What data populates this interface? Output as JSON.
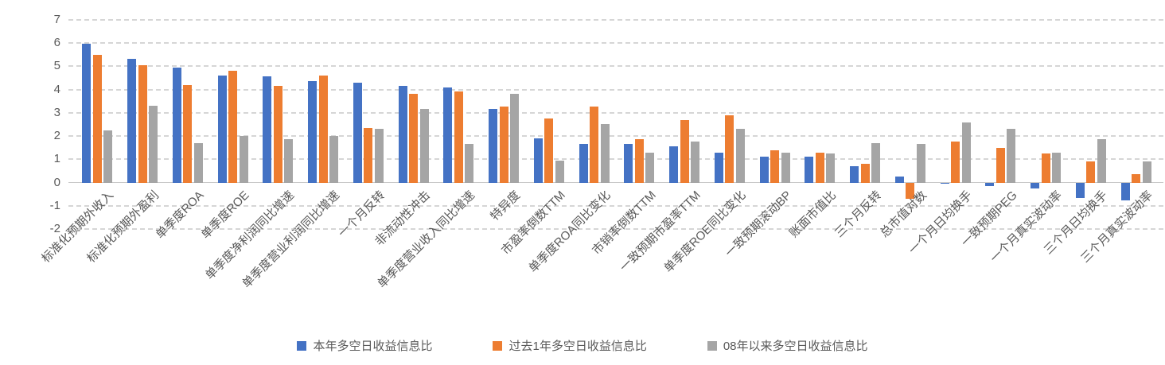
{
  "chart_data": {
    "type": "bar",
    "title": "",
    "xlabel": "",
    "ylabel": "",
    "ylim": [
      -2,
      7
    ],
    "yticks": [
      7,
      6,
      5,
      4,
      3,
      2,
      1,
      0,
      -1,
      -2
    ],
    "grid": "dashed-horizontal",
    "legend_position": "bottom",
    "categories": [
      "标准化预期外收入",
      "标准化预期外盈利",
      "单季度ROA",
      "单季度ROE",
      "单季度净利润同比增速",
      "单季度营业利润同比增速",
      "一个月反转",
      "非流动性冲击",
      "单季度营业收入同比增速",
      "特异度",
      "市盈率倒数TTM",
      "单季度ROA同比变化",
      "市销率倒数TTM",
      "一致预期市盈率TTM",
      "单季度ROE同比变化",
      "一致预期滚动BP",
      "账面市值比",
      "三个月反转",
      "总市值对数",
      "一个月日均换手",
      "一致预期PEG",
      "一个月真实波动率",
      "三个月日均换手",
      "三个月真实波动率"
    ],
    "series": [
      {
        "name": "本年多空日收益信息比",
        "color": "#4472C4",
        "values": [
          5.95,
          5.3,
          4.95,
          4.6,
          4.55,
          4.35,
          4.3,
          4.15,
          4.1,
          3.15,
          1.9,
          1.65,
          1.65,
          1.55,
          1.3,
          1.1,
          1.1,
          0.7,
          0.25,
          -0.05,
          -0.15,
          -0.25,
          -0.65,
          -0.75
        ]
      },
      {
        "name": "过去1年多空日收益信息比",
        "color": "#ED7D31",
        "values": [
          5.5,
          5.05,
          4.2,
          4.8,
          4.15,
          4.6,
          2.35,
          3.8,
          3.9,
          3.25,
          2.75,
          3.25,
          1.85,
          2.7,
          2.9,
          1.4,
          1.3,
          0.8,
          -0.7,
          1.75,
          1.5,
          1.25,
          0.9,
          0.35
        ]
      },
      {
        "name": "08年以来多空日收益信息比",
        "color": "#A5A5A5",
        "values": [
          2.25,
          3.3,
          1.7,
          2.0,
          1.85,
          2.0,
          2.3,
          3.15,
          1.65,
          3.8,
          0.95,
          2.5,
          1.3,
          1.75,
          2.3,
          1.3,
          1.25,
          1.7,
          1.65,
          2.6,
          2.3,
          1.3,
          1.85,
          0.9
        ]
      }
    ],
    "axis_text_color": "#595959",
    "gridline_color": "#d6d6d6"
  }
}
